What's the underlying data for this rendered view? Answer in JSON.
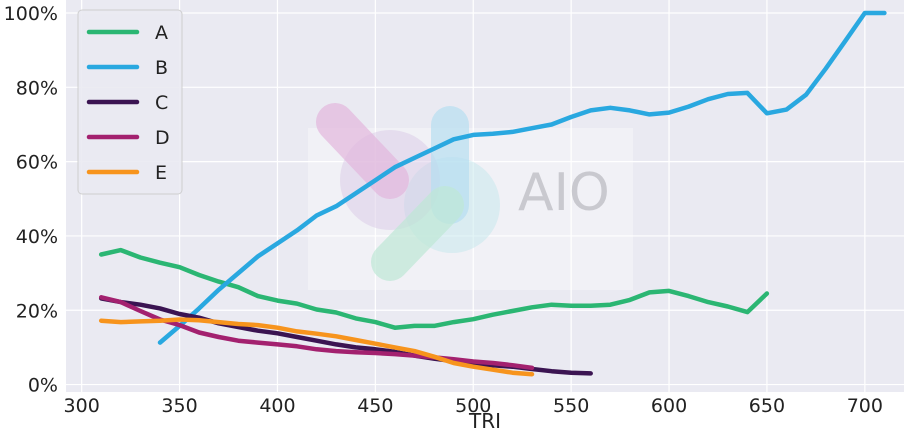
{
  "chart_data": {
    "type": "line",
    "title": "",
    "xlabel": "TRI",
    "ylabel": "",
    "xlim": [
      292,
      720
    ],
    "ylim": [
      -0.02,
      1.035
    ],
    "x_ticks": [
      300,
      350,
      400,
      450,
      500,
      550,
      600,
      650,
      700
    ],
    "y_ticks": [
      0,
      0.2,
      0.4,
      0.6,
      0.8,
      1.0
    ],
    "y_tick_labels": [
      "0%",
      "20%",
      "40%",
      "60%",
      "80%",
      "100%"
    ],
    "grid": true,
    "legend_position": "top-left",
    "watermark": "AIO",
    "series": [
      {
        "name": "A",
        "color": "#2bb673",
        "x": [
          310,
          320,
          330,
          340,
          350,
          360,
          370,
          380,
          390,
          400,
          410,
          420,
          430,
          440,
          450,
          460,
          470,
          480,
          490,
          500,
          510,
          520,
          530,
          540,
          550,
          560,
          570,
          580,
          590,
          600,
          610,
          620,
          630,
          640,
          650
        ],
        "y": [
          0.35,
          0.362,
          0.342,
          0.328,
          0.316,
          0.295,
          0.277,
          0.262,
          0.238,
          0.226,
          0.218,
          0.202,
          0.194,
          0.178,
          0.168,
          0.153,
          0.158,
          0.158,
          0.168,
          0.176,
          0.188,
          0.198,
          0.208,
          0.215,
          0.212,
          0.212,
          0.215,
          0.228,
          0.248,
          0.252,
          0.238,
          0.222,
          0.21,
          0.195,
          0.245
        ]
      },
      {
        "name": "B",
        "color": "#29a8e0",
        "x": [
          340,
          350,
          360,
          370,
          380,
          390,
          400,
          410,
          420,
          430,
          440,
          450,
          460,
          470,
          480,
          490,
          500,
          510,
          520,
          530,
          540,
          550,
          560,
          570,
          580,
          590,
          600,
          610,
          620,
          630,
          640,
          650,
          660,
          670,
          680,
          690,
          700,
          710
        ],
        "y": [
          0.113,
          0.158,
          0.205,
          0.255,
          0.3,
          0.345,
          0.38,
          0.415,
          0.455,
          0.48,
          0.515,
          0.55,
          0.585,
          0.61,
          0.635,
          0.66,
          0.672,
          0.675,
          0.68,
          0.69,
          0.7,
          0.72,
          0.738,
          0.745,
          0.738,
          0.727,
          0.732,
          0.748,
          0.768,
          0.782,
          0.785,
          0.73,
          0.74,
          0.78,
          0.85,
          0.925,
          1.0,
          1.0
        ]
      },
      {
        "name": "C",
        "color": "#3b1452",
        "x": [
          310,
          320,
          330,
          340,
          350,
          360,
          370,
          380,
          390,
          400,
          410,
          420,
          430,
          440,
          450,
          460,
          470,
          480,
          490,
          500,
          510,
          520,
          530,
          540,
          550,
          560
        ],
        "y": [
          0.232,
          0.222,
          0.215,
          0.205,
          0.19,
          0.18,
          0.165,
          0.155,
          0.145,
          0.138,
          0.128,
          0.118,
          0.108,
          0.1,
          0.095,
          0.088,
          0.078,
          0.07,
          0.063,
          0.057,
          0.052,
          0.048,
          0.042,
          0.036,
          0.032,
          0.03
        ]
      },
      {
        "name": "D",
        "color": "#a3216f",
        "x": [
          310,
          320,
          330,
          340,
          350,
          360,
          370,
          380,
          390,
          400,
          410,
          420,
          430,
          440,
          450,
          460,
          470,
          480,
          490,
          500,
          510,
          520,
          530
        ],
        "y": [
          0.235,
          0.222,
          0.198,
          0.175,
          0.16,
          0.14,
          0.128,
          0.118,
          0.113,
          0.108,
          0.103,
          0.095,
          0.09,
          0.087,
          0.085,
          0.082,
          0.078,
          0.073,
          0.068,
          0.062,
          0.058,
          0.052,
          0.045
        ]
      },
      {
        "name": "E",
        "color": "#f7941d",
        "x": [
          310,
          320,
          330,
          340,
          350,
          360,
          370,
          380,
          390,
          400,
          410,
          420,
          430,
          440,
          450,
          460,
          470,
          480,
          490,
          500,
          510,
          520,
          530
        ],
        "y": [
          0.172,
          0.168,
          0.17,
          0.172,
          0.175,
          0.173,
          0.168,
          0.163,
          0.16,
          0.153,
          0.143,
          0.137,
          0.13,
          0.12,
          0.11,
          0.1,
          0.09,
          0.075,
          0.058,
          0.048,
          0.04,
          0.032,
          0.028
        ]
      }
    ]
  }
}
